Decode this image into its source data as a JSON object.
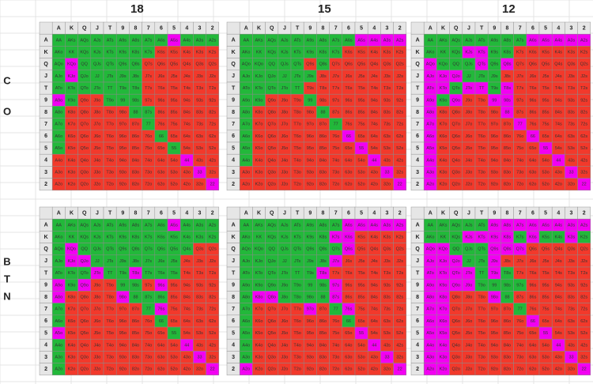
{
  "headers": [
    "18",
    "15",
    "12"
  ],
  "positions": [
    [
      "C",
      "O"
    ],
    [
      "B",
      "T",
      "N"
    ]
  ],
  "ranks": [
    "A",
    "K",
    "Q",
    "J",
    "T",
    "9",
    "8",
    "7",
    "6",
    "5",
    "4",
    "3",
    "2"
  ],
  "hands": [
    [
      "AA",
      "AKs",
      "AQs",
      "AJs",
      "ATs",
      "A9s",
      "A8s",
      "A7s",
      "A6s",
      "A5s",
      "A4s",
      "A3s",
      "A2s"
    ],
    [
      "AKo",
      "KK",
      "KQs",
      "KJs",
      "KTs",
      "K9s",
      "K8s",
      "K7s",
      "K6s",
      "K5s",
      "K4s",
      "K3s",
      "K2s"
    ],
    [
      "AQo",
      "KQo",
      "QQ",
      "QJs",
      "QTs",
      "Q9s",
      "Q8s",
      "Q7s",
      "Q6s",
      "Q5s",
      "Q4s",
      "Q3s",
      "Q2s"
    ],
    [
      "AJo",
      "KJo",
      "QJo",
      "JJ",
      "JTs",
      "J9s",
      "J8s",
      "J7s",
      "J6s",
      "J5s",
      "J4s",
      "J3s",
      "J2s"
    ],
    [
      "ATo",
      "KTo",
      "QTo",
      "JTo",
      "TT",
      "T9s",
      "T8s",
      "T7s",
      "T6s",
      "T5s",
      "T4s",
      "T3s",
      "T2s"
    ],
    [
      "A9o",
      "K9o",
      "Q9o",
      "J9o",
      "T9o",
      "99",
      "98s",
      "97s",
      "96s",
      "95s",
      "94s",
      "93s",
      "92s"
    ],
    [
      "A8o",
      "K8o",
      "Q8o",
      "J8o",
      "T8o",
      "98o",
      "88",
      "87s",
      "86s",
      "85s",
      "84s",
      "83s",
      "82s"
    ],
    [
      "A7o",
      "K7o",
      "Q7o",
      "J7o",
      "T7o",
      "97o",
      "87o",
      "77",
      "76s",
      "75s",
      "74s",
      "73s",
      "72s"
    ],
    [
      "A6o",
      "K6o",
      "Q6o",
      "J6o",
      "T6o",
      "96o",
      "86o",
      "76o",
      "66",
      "65s",
      "64s",
      "63s",
      "62s"
    ],
    [
      "A5o",
      "K5o",
      "Q5o",
      "J5o",
      "T5o",
      "95o",
      "85o",
      "75o",
      "65o",
      "55",
      "54s",
      "53s",
      "52s"
    ],
    [
      "A4o",
      "K4o",
      "Q4o",
      "J4o",
      "T4o",
      "94o",
      "84o",
      "74o",
      "64o",
      "54o",
      "44",
      "43s",
      "42s"
    ],
    [
      "A3o",
      "K3o",
      "Q3o",
      "J3o",
      "T3o",
      "93o",
      "83o",
      "73o",
      "63o",
      "53o",
      "43o",
      "33",
      "32s"
    ],
    [
      "A2o",
      "K2o",
      "Q2o",
      "J2o",
      "T2o",
      "92o",
      "82o",
      "72o",
      "62o",
      "52o",
      "42o",
      "32o",
      "22"
    ]
  ],
  "colors": {
    "g": "#22b83a",
    "r": "#f2392b",
    "m": "#f200f2"
  },
  "grids": [
    [
      "gggggggggmggg",
      "ggggggggrrrrr",
      "gmgggggrrrrrr",
      "gmgggggrrrrrr",
      "gggggggrrrrrr",
      "mgrrgggrrrrrr",
      "grrrrrggrrrrr",
      "grrrrrrgrrrrr",
      "grrrrrrrgrrrr",
      "grrrrrrrrgrrr",
      "rrrrrrrrrrmrr",
      "rrrrrrrrrrrmr",
      "rrrrrrrrrrrrm"
    ],
    [
      "gggggggggmmmm",
      "ggggggggrrrrr",
      "gggggrgrrrrrr",
      "ggggggrrrrrrr",
      "gggggrrrrrrrr",
      "ggrrrgrrrrrrr",
      "grrrrrgrrrrrr",
      "grrrrrrgrrrrr",
      "grrrrrrrmrrrr",
      "grrrrrrrrmrrr",
      "grrrrrrrrrmrr",
      "rrrrrrrrrrrmr",
      "rrrrrrrrrrrrm"
    ],
    [
      "ggggggggmmmmm",
      "gggmmggrrrrrr",
      "mgggmgmrrrrrr",
      "mmmgggrrrrrrr",
      "mmgmmgmrrrrrr",
      "mgmrrmmrrrrrr",
      "mrrrrrmrrrrrr",
      "mrrrrrrmrrrrr",
      "mrrrrrrrmrrrr",
      "mrrrrrrrrmrrr",
      "mrrrrrrrrrmrr",
      "mrrrrrrrrrrmr",
      "mrrrrrrrrrrrm"
    ],
    [
      "gggggggggmggg",
      "ggggggggggggg",
      "gmgggggggggrr",
      "gmmgggggggrrr",
      "gggmggmgggrrr",
      "mgmrrggrmrrrr",
      "mrrrrmgggrrrr",
      "grrrrrrgmrrrr",
      "grrrrrrrgrrrr",
      "mrrrrrrrrgrrr",
      "grrrrrrrrrmrr",
      "grrrrrrrrrrmr",
      "grrrrrrrrrrrm"
    ],
    [
      "ggggggggmmmmm",
      "gggggggmmrrrr",
      "ggggggggmrrrr",
      "gggggggmrrrrr",
      "ggggggmrrrrrr",
      "gggggggmrrrrr",
      "gmmggggmrrrrr",
      "grrrrmrgmrrrr",
      "grrrrrrrgrrrr",
      "grrrrrrrrmrrr",
      "grrrrrrrrrmrr",
      "grrrrrrrrrrmr",
      "mrrrrrrrrrrrm"
    ],
    [
      "gggggmmmmmmmm",
      "gggmmmmgmggmg",
      "mmgggmmmrrrrr",
      "mmmggmrrrrrrr",
      "mmmmgmgrrrrrr",
      "mmmmggggrrrrr",
      "mmrrrmgrrrrrr",
      "mmrrrrrgrrrrr",
      "mmrrrrrrmrrrr",
      "mmrrrrrrrmrrr",
      "mmrrrrrrrrmrr",
      "mmrrrrrrrrrmr",
      "mmrrrrrrrrrrm"
    ]
  ]
}
